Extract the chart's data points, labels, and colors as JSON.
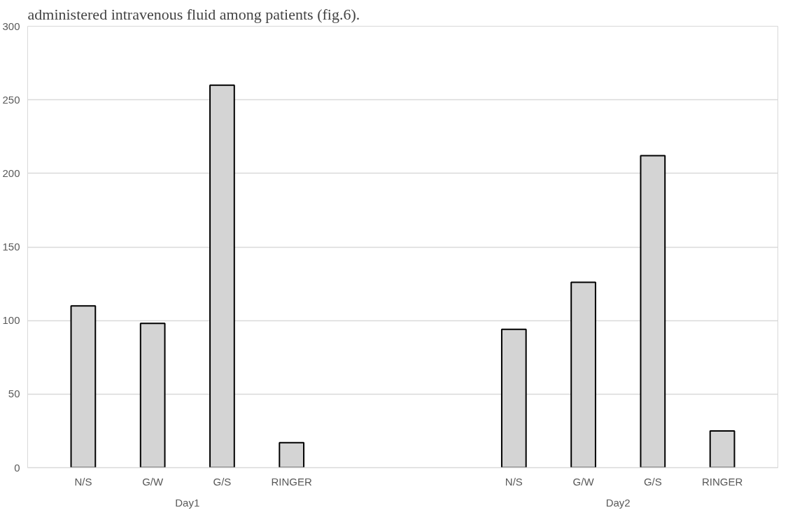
{
  "chart_data": {
    "type": "bar",
    "title": "administered intravenous fluid among patients (fig.6).",
    "categories": [
      "N/S",
      "G/W",
      "G/S",
      "RINGER",
      "N/S",
      "G/W",
      "G/S",
      "RINGER"
    ],
    "annotations": [
      "Day1",
      "Day2"
    ],
    "values": [
      110,
      98,
      260,
      17,
      94,
      126,
      212,
      25
    ],
    "color": "#d4d4d4",
    "ylim": [
      0,
      300
    ],
    "yticks": [
      0,
      50,
      100,
      150,
      200,
      250,
      300
    ],
    "grid": "y"
  }
}
